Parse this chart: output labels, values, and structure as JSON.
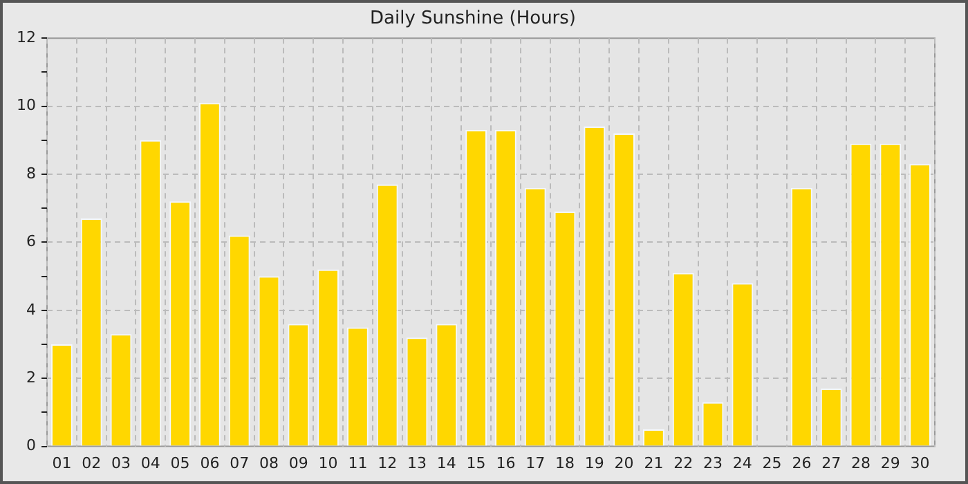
{
  "chart_data": {
    "type": "bar",
    "title": "Daily Sunshine (Hours)",
    "categories": [
      "01",
      "02",
      "03",
      "04",
      "05",
      "06",
      "07",
      "08",
      "09",
      "10",
      "11",
      "12",
      "13",
      "14",
      "15",
      "16",
      "17",
      "18",
      "19",
      "20",
      "21",
      "22",
      "23",
      "24",
      "25",
      "26",
      "27",
      "28",
      "29",
      "30"
    ],
    "values": [
      3.0,
      6.7,
      3.3,
      9.0,
      7.2,
      10.1,
      6.2,
      5.0,
      3.6,
      5.2,
      3.5,
      7.7,
      3.2,
      3.6,
      9.3,
      9.3,
      7.6,
      6.9,
      9.4,
      9.2,
      0.5,
      5.1,
      1.3,
      4.8,
      0,
      7.6,
      1.7,
      8.9,
      8.9,
      8.3
    ],
    "color": "#ffd700",
    "ylim": [
      0,
      12
    ],
    "yticks": [
      0,
      {
        "value": 1,
        "label": null
      },
      2,
      {
        "value": 3,
        "label": null
      },
      4,
      {
        "value": 5,
        "label": null
      },
      6,
      {
        "value": 7,
        "label": null
      },
      8,
      {
        "value": 9,
        "label": null
      },
      10,
      {
        "value": 11,
        "label": null
      },
      12
    ],
    "grid": true
  }
}
